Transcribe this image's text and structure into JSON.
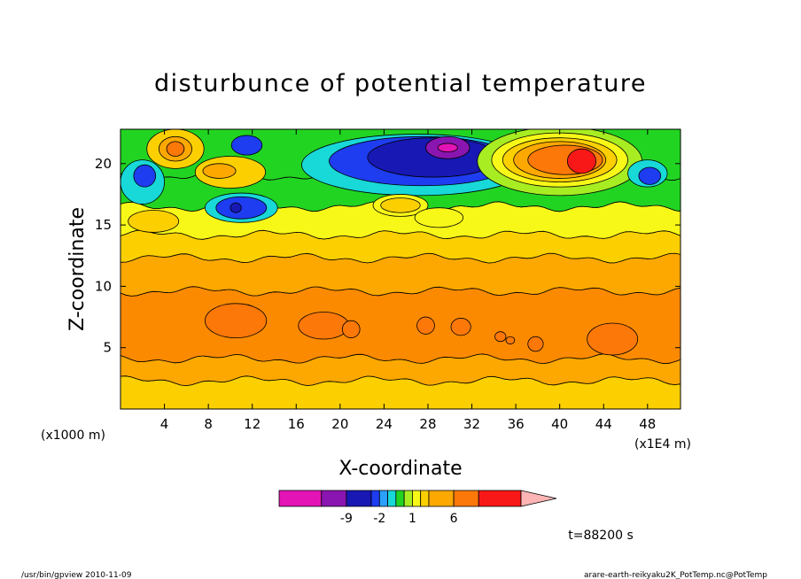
{
  "chart_data": {
    "type": "heatmap",
    "title": "disturbunce of potential temperature",
    "xlabel": "X-coordinate",
    "ylabel": "Z-coordinate",
    "x_unit_label": "(x1E4 m)",
    "y_unit_label": "(x1000 m)",
    "x_ticks": [
      4,
      8,
      12,
      16,
      20,
      24,
      28,
      32,
      36,
      40,
      44,
      48
    ],
    "y_ticks": [
      5,
      10,
      15,
      20
    ],
    "xlim": [
      0,
      51
    ],
    "ylim": [
      0,
      22.8
    ],
    "grid": false,
    "colorbar": {
      "tick_labels": [
        "-9",
        "-2",
        "1",
        "6"
      ],
      "colors": [
        "#e413b6",
        "#8a15b0",
        "#1818b4",
        "#1e3cf0",
        "#2aa0ff",
        "#18d8d8",
        "#22d422",
        "#a8ec22",
        "#f8f818",
        "#fcd000",
        "#fca800",
        "#fc7808",
        "#f81818",
        "#fc7878",
        "#fcb4b4"
      ]
    },
    "field": {
      "z_levels": [
        0,
        2.3,
        4.1,
        9.6,
        12.3,
        14.2,
        16.5,
        19,
        22.8
      ],
      "layer_colors": [
        "#fcd000",
        "#fca800",
        "#fc8a00",
        "#fca800",
        "#fcd000",
        "#f8f818",
        "#22d422",
        "#22d422"
      ],
      "blobs": [
        {
          "x": 5,
          "z": 21.2,
          "rx": 2.6,
          "rz": 1.6,
          "color": "#fcd000"
        },
        {
          "x": 5,
          "z": 21.2,
          "rx": 1.5,
          "rz": 1.0,
          "color": "#fca800"
        },
        {
          "x": 5,
          "z": 21.2,
          "rx": 0.8,
          "rz": 0.6,
          "color": "#fc7808"
        },
        {
          "x": 10,
          "z": 19.3,
          "rx": 3.2,
          "rz": 1.3,
          "color": "#fcd000"
        },
        {
          "x": 9,
          "z": 19.4,
          "rx": 1.5,
          "rz": 0.6,
          "color": "#fca800"
        },
        {
          "x": 11,
          "z": 16.4,
          "rx": 3.3,
          "rz": 1.2,
          "color": "#18d8d8"
        },
        {
          "x": 11,
          "z": 16.4,
          "rx": 2.3,
          "rz": 0.9,
          "color": "#1e3cf0"
        },
        {
          "x": 10.5,
          "z": 16.4,
          "rx": 0.5,
          "rz": 0.4,
          "color": "#1818b4"
        },
        {
          "x": 11.5,
          "z": 21.5,
          "rx": 1.4,
          "rz": 0.8,
          "color": "#1e3cf0"
        },
        {
          "x": 2,
          "z": 18.5,
          "rx": 2.0,
          "rz": 1.8,
          "color": "#18d8d8"
        },
        {
          "x": 2.2,
          "z": 19,
          "rx": 1.0,
          "rz": 0.9,
          "color": "#1e3cf0"
        },
        {
          "x": 27,
          "z": 19.9,
          "rx": 10.5,
          "rz": 2.5,
          "color": "#18d8d8"
        },
        {
          "x": 27.5,
          "z": 20.2,
          "rx": 8.5,
          "rz": 2.0,
          "color": "#1e3cf0"
        },
        {
          "x": 28.5,
          "z": 20.5,
          "rx": 6.0,
          "rz": 1.6,
          "color": "#1818b4"
        },
        {
          "x": 29.8,
          "z": 21.3,
          "rx": 2.0,
          "rz": 0.9,
          "color": "#8a15b0"
        },
        {
          "x": 29.8,
          "z": 21.3,
          "rx": 0.9,
          "rz": 0.35,
          "color": "#e413b6"
        },
        {
          "x": 40,
          "z": 20.2,
          "rx": 7.5,
          "rz": 2.8,
          "color": "#a8ec22"
        },
        {
          "x": 40,
          "z": 20.3,
          "rx": 6.2,
          "rz": 2.2,
          "color": "#f8f818"
        },
        {
          "x": 40,
          "z": 20.3,
          "rx": 5.2,
          "rz": 1.8,
          "color": "#fcd000"
        },
        {
          "x": 40,
          "z": 20.3,
          "rx": 4.2,
          "rz": 1.5,
          "color": "#fca800"
        },
        {
          "x": 40.5,
          "z": 20.3,
          "rx": 3.4,
          "rz": 1.2,
          "color": "#fc7808"
        },
        {
          "x": 42,
          "z": 20.2,
          "rx": 1.3,
          "rz": 1.0,
          "color": "#f81818"
        },
        {
          "x": 48,
          "z": 19.2,
          "rx": 1.8,
          "rz": 1.1,
          "color": "#18d8d8"
        },
        {
          "x": 48.2,
          "z": 19.0,
          "rx": 1.0,
          "rz": 0.7,
          "color": "#1e3cf0"
        },
        {
          "x": 25.5,
          "z": 16.6,
          "rx": 2.5,
          "rz": 0.9,
          "color": "#f8f818"
        },
        {
          "x": 25.5,
          "z": 16.6,
          "rx": 1.8,
          "rz": 0.6,
          "color": "#fcd000"
        },
        {
          "x": 29,
          "z": 15.6,
          "rx": 2.2,
          "rz": 0.8,
          "color": "#f8f818"
        },
        {
          "x": 3,
          "z": 15.3,
          "rx": 2.3,
          "rz": 0.9,
          "color": "#fcd000"
        },
        {
          "x": 10.5,
          "z": 7.2,
          "rx": 2.8,
          "rz": 1.4,
          "color": "#fc7808"
        },
        {
          "x": 18.5,
          "z": 6.8,
          "rx": 2.3,
          "rz": 1.1,
          "color": "#fc7808"
        },
        {
          "x": 21,
          "z": 6.5,
          "rx": 0.8,
          "rz": 0.7,
          "color": "#fc7808"
        },
        {
          "x": 27.8,
          "z": 6.8,
          "rx": 0.8,
          "rz": 0.7,
          "color": "#fc7808"
        },
        {
          "x": 31,
          "z": 6.7,
          "rx": 0.9,
          "rz": 0.7,
          "color": "#fc7808"
        },
        {
          "x": 34.6,
          "z": 5.9,
          "rx": 0.5,
          "rz": 0.4,
          "color": "#fc7808"
        },
        {
          "x": 35.5,
          "z": 5.6,
          "rx": 0.4,
          "rz": 0.3,
          "color": "#fc7808"
        },
        {
          "x": 37.8,
          "z": 5.3,
          "rx": 0.7,
          "rz": 0.6,
          "color": "#fc7808"
        },
        {
          "x": 44.8,
          "z": 5.7,
          "rx": 2.3,
          "rz": 1.3,
          "color": "#fc7808"
        }
      ]
    }
  },
  "annotations": {
    "time_label": "t=88200 s",
    "footer_left": "/usr/bin/gpview  2010-11-09",
    "footer_right": "arare-earth-reikyaku2K_PotTemp.nc@PotTemp"
  }
}
